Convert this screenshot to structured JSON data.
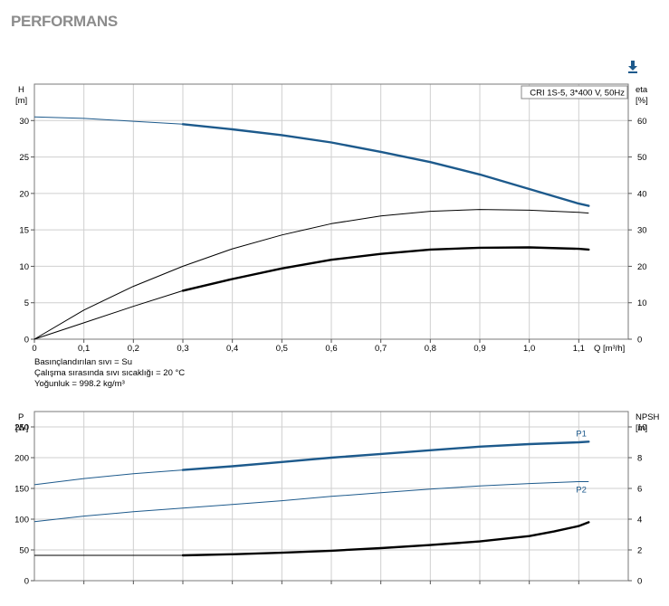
{
  "header": {
    "title": "PERFORMANS",
    "download_icon": "download-arrow-icon",
    "accent_color": "#1d5a8c"
  },
  "chart_data": [
    {
      "type": "line",
      "caption": "CRI 1S-5, 3*400 V, 50Hz",
      "left_axis": {
        "label_top": "H",
        "label_unit": "[m]",
        "ylim": [
          0,
          35
        ],
        "ticks": [
          "0",
          "5",
          "10",
          "15",
          "20",
          "25",
          "30"
        ]
      },
      "right_axis": {
        "label_top": "eta",
        "label_unit": "[%]",
        "ylim": [
          0,
          70
        ],
        "ticks": [
          "0",
          "10",
          "20",
          "30",
          "40",
          "50",
          "60"
        ]
      },
      "x_axis": {
        "label": "Q [m³/h]",
        "xlim": [
          0,
          1.2
        ],
        "ticks": [
          "0",
          "0,1",
          "0,2",
          "0,3",
          "0,4",
          "0,5",
          "0,6",
          "0,7",
          "0,8",
          "0,9",
          "1,0",
          "1,1"
        ]
      },
      "grid": true,
      "series": [
        {
          "key": "H",
          "axis": "left",
          "color": "#1d5a8c",
          "x": [
            0,
            0.1,
            0.2,
            0.3,
            0.4,
            0.5,
            0.6,
            0.7,
            0.8,
            0.9,
            1.0,
            1.1,
            1.12
          ],
          "y": [
            30.5,
            30.3,
            29.9,
            29.5,
            28.8,
            28.0,
            27.0,
            25.7,
            24.3,
            22.6,
            20.6,
            18.6,
            18.3
          ],
          "bold_from": 0.3
        },
        {
          "key": "eta_thin",
          "axis": "right",
          "color": "#000000",
          "x": [
            0,
            0.1,
            0.2,
            0.3,
            0.4,
            0.5,
            0.6,
            0.7,
            0.8,
            0.9,
            1.0,
            1.1,
            1.12
          ],
          "y": [
            0,
            8.0,
            14.5,
            20.0,
            24.8,
            28.6,
            31.7,
            33.8,
            35.1,
            35.6,
            35.4,
            34.8,
            34.6
          ],
          "bold_from": null
        },
        {
          "key": "eta_bold",
          "axis": "right",
          "color": "#000000",
          "x": [
            0,
            0.1,
            0.2,
            0.3,
            0.4,
            0.5,
            0.6,
            0.7,
            0.8,
            0.9,
            1.0,
            1.1,
            1.12
          ],
          "y": [
            0,
            4.5,
            9.0,
            13.3,
            16.5,
            19.4,
            21.8,
            23.4,
            24.6,
            25.1,
            25.2,
            24.8,
            24.6
          ],
          "bold_from": 0.3
        }
      ],
      "notes": [
        "Basınçlandırılan sıvı = Su",
        "Çalışma sırasında sıvı sıcaklığı = 20 °C",
        "Yoğunluk = 998.2 kg/m³"
      ]
    },
    {
      "type": "line",
      "left_axis": {
        "label_top": "P",
        "label_unit": "[W]",
        "ylim": [
          0,
          275
        ],
        "ticks": [
          "0",
          "50",
          "100",
          "150",
          "200",
          "250"
        ]
      },
      "right_axis": {
        "label_top": "NPSH",
        "label_unit": "[m]",
        "ylim": [
          0,
          11
        ],
        "ticks": [
          "0",
          "2",
          "4",
          "6",
          "8",
          "10"
        ]
      },
      "x_axis": {
        "xlim": [
          0,
          1.2
        ]
      },
      "grid": true,
      "series": [
        {
          "key": "P1",
          "name": "P1",
          "axis": "left",
          "color": "#1d5a8c",
          "x": [
            0,
            0.1,
            0.2,
            0.3,
            0.4,
            0.5,
            0.6,
            0.7,
            0.8,
            0.9,
            1.0,
            1.1,
            1.12
          ],
          "y": [
            156,
            166,
            174,
            180,
            186,
            193,
            200,
            206,
            212,
            218,
            222,
            225,
            226
          ],
          "bold_from": 0.3
        },
        {
          "key": "P2",
          "name": "P2",
          "axis": "left",
          "color": "#1d5a8c",
          "x": [
            0,
            0.1,
            0.2,
            0.3,
            0.4,
            0.5,
            0.6,
            0.7,
            0.8,
            0.9,
            1.0,
            1.1,
            1.12
          ],
          "y": [
            96,
            105,
            112,
            118,
            124,
            130,
            137,
            143,
            149,
            154,
            158,
            161,
            161
          ],
          "bold_from": null
        },
        {
          "key": "NPSH",
          "axis": "right",
          "color": "#000000",
          "x": [
            0,
            0.3,
            0.4,
            0.5,
            0.6,
            0.7,
            0.8,
            0.9,
            1.0,
            1.05,
            1.1,
            1.12
          ],
          "y": [
            1.65,
            1.65,
            1.72,
            1.82,
            1.95,
            2.12,
            2.32,
            2.55,
            2.9,
            3.2,
            3.55,
            3.8
          ],
          "thin_until": 0.3
        }
      ]
    }
  ]
}
